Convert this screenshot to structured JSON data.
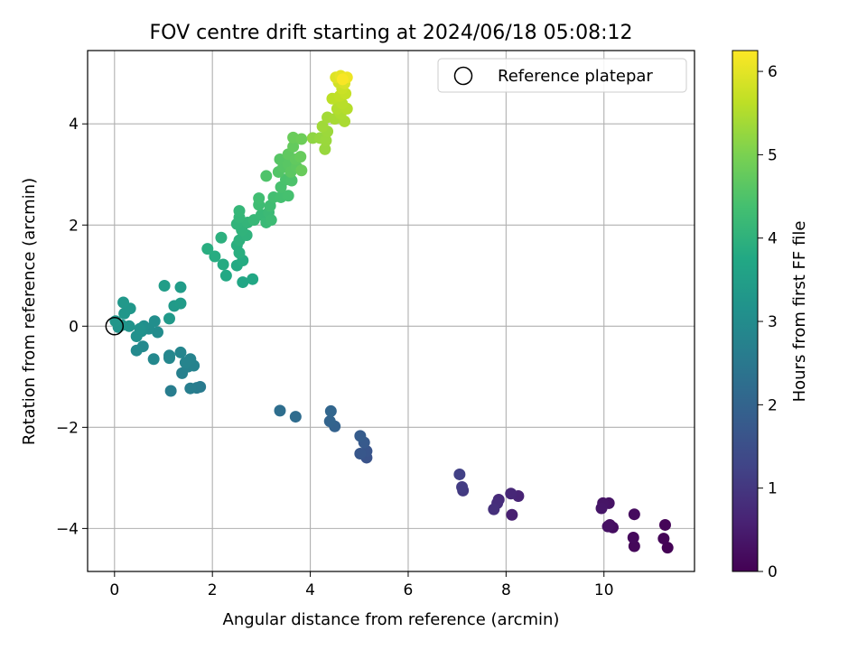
{
  "chart_data": {
    "type": "scatter",
    "title": "FOV centre drift starting at 2024/06/18 05:08:12",
    "xlabel": "Angular distance from reference (arcmin)",
    "ylabel": "Rotation from reference (arcmin)",
    "xlim": [
      -0.55,
      11.85
    ],
    "ylim": [
      -4.85,
      5.45
    ],
    "xticks": [
      0,
      2,
      4,
      6,
      8,
      10
    ],
    "yticks": [
      -4,
      -2,
      0,
      2,
      4
    ],
    "xtick_labels": [
      "0",
      "2",
      "4",
      "6",
      "8",
      "10"
    ],
    "ytick_labels": [
      "−4",
      "−2",
      "0",
      "2",
      "4"
    ],
    "grid": true,
    "legend": {
      "placement": "top-right",
      "label": "Reference platepar"
    },
    "reference_point": {
      "x": 0,
      "y": 0
    },
    "colorbar": {
      "label": "Hours from first FF file",
      "colormap": "viridis",
      "range": [
        0,
        6.25
      ],
      "ticks": [
        0,
        1,
        2,
        3,
        4,
        5,
        6
      ],
      "tick_labels": [
        "0",
        "1",
        "2",
        "3",
        "4",
        "5",
        "6"
      ]
    },
    "points": [
      {
        "x": 11.3,
        "y": -4.38,
        "t": 0.02
      },
      {
        "x": 11.22,
        "y": -4.2,
        "t": 0.05
      },
      {
        "x": 11.25,
        "y": -3.93,
        "t": 0.08
      },
      {
        "x": 10.62,
        "y": -4.35,
        "t": 0.12
      },
      {
        "x": 10.6,
        "y": -4.18,
        "t": 0.15
      },
      {
        "x": 10.62,
        "y": -3.72,
        "t": 0.18
      },
      {
        "x": 10.18,
        "y": -3.98,
        "t": 0.22
      },
      {
        "x": 10.12,
        "y": -3.93,
        "t": 0.25
      },
      {
        "x": 10.08,
        "y": -3.96,
        "t": 0.28
      },
      {
        "x": 10.1,
        "y": -3.5,
        "t": 0.32
      },
      {
        "x": 9.98,
        "y": -3.5,
        "t": 0.35
      },
      {
        "x": 9.95,
        "y": -3.6,
        "t": 0.38
      },
      {
        "x": 8.12,
        "y": -3.73,
        "t": 0.55
      },
      {
        "x": 8.25,
        "y": -3.36,
        "t": 0.62
      },
      {
        "x": 8.1,
        "y": -3.31,
        "t": 0.68
      },
      {
        "x": 7.85,
        "y": -3.43,
        "t": 0.75
      },
      {
        "x": 7.82,
        "y": -3.5,
        "t": 0.8
      },
      {
        "x": 7.75,
        "y": -3.62,
        "t": 0.85
      },
      {
        "x": 7.12,
        "y": -3.25,
        "t": 1.05
      },
      {
        "x": 7.1,
        "y": -3.18,
        "t": 1.1
      },
      {
        "x": 7.05,
        "y": -2.93,
        "t": 1.2
      },
      {
        "x": 5.15,
        "y": -2.6,
        "t": 1.6
      },
      {
        "x": 5.15,
        "y": -2.47,
        "t": 1.65
      },
      {
        "x": 5.02,
        "y": -2.52,
        "t": 1.7
      },
      {
        "x": 5.1,
        "y": -2.3,
        "t": 1.75
      },
      {
        "x": 5.02,
        "y": -2.17,
        "t": 1.8
      },
      {
        "x": 4.5,
        "y": -1.98,
        "t": 1.95
      },
      {
        "x": 4.4,
        "y": -1.88,
        "t": 2.0
      },
      {
        "x": 4.42,
        "y": -1.68,
        "t": 2.05
      },
      {
        "x": 3.7,
        "y": -1.79,
        "t": 2.2
      },
      {
        "x": 3.38,
        "y": -1.67,
        "t": 2.25
      },
      {
        "x": 1.75,
        "y": -1.2,
        "t": 2.55
      },
      {
        "x": 1.68,
        "y": -1.22,
        "t": 2.6
      },
      {
        "x": 1.15,
        "y": -1.28,
        "t": 2.62
      },
      {
        "x": 1.55,
        "y": -1.23,
        "t": 2.65
      },
      {
        "x": 1.38,
        "y": -0.93,
        "t": 2.7
      },
      {
        "x": 1.5,
        "y": -0.8,
        "t": 2.72
      },
      {
        "x": 1.62,
        "y": -0.78,
        "t": 2.75
      },
      {
        "x": 1.55,
        "y": -0.65,
        "t": 2.78
      },
      {
        "x": 1.45,
        "y": -0.72,
        "t": 2.8
      },
      {
        "x": 1.35,
        "y": -0.52,
        "t": 2.82
      },
      {
        "x": 1.12,
        "y": -0.58,
        "t": 2.85
      },
      {
        "x": 1.12,
        "y": -0.63,
        "t": 2.88
      },
      {
        "x": 0.8,
        "y": -0.65,
        "t": 2.9
      },
      {
        "x": 0.58,
        "y": -0.4,
        "t": 2.93
      },
      {
        "x": 0.45,
        "y": -0.48,
        "t": 2.95
      },
      {
        "x": 0.88,
        "y": -0.12,
        "t": 3.0
      },
      {
        "x": 0.7,
        "y": -0.05,
        "t": 3.02
      },
      {
        "x": 0.82,
        "y": 0.1,
        "t": 3.05
      },
      {
        "x": 0.6,
        "y": 0.0,
        "t": 3.08
      },
      {
        "x": 0.55,
        "y": -0.1,
        "t": 3.1
      },
      {
        "x": 0.45,
        "y": -0.2,
        "t": 3.12
      },
      {
        "x": 0.52,
        "y": -0.05,
        "t": 3.15
      },
      {
        "x": 0.3,
        "y": 0.0,
        "t": 3.18
      },
      {
        "x": 0.15,
        "y": 0.02,
        "t": 3.2
      },
      {
        "x": 0.08,
        "y": -0.02,
        "t": 3.22
      },
      {
        "x": 0.02,
        "y": 0.1,
        "t": 3.25
      },
      {
        "x": 0.2,
        "y": 0.25,
        "t": 3.28
      },
      {
        "x": 0.32,
        "y": 0.35,
        "t": 3.3
      },
      {
        "x": 0.18,
        "y": 0.47,
        "t": 3.32
      },
      {
        "x": 1.12,
        "y": 0.15,
        "t": 3.35
      },
      {
        "x": 1.22,
        "y": 0.4,
        "t": 3.38
      },
      {
        "x": 1.35,
        "y": 0.45,
        "t": 3.4
      },
      {
        "x": 1.35,
        "y": 0.77,
        "t": 3.42
      },
      {
        "x": 1.02,
        "y": 0.8,
        "t": 3.45
      },
      {
        "x": 2.62,
        "y": 0.87,
        "t": 3.7
      },
      {
        "x": 2.82,
        "y": 0.93,
        "t": 3.72
      },
      {
        "x": 2.28,
        "y": 1.0,
        "t": 3.75
      },
      {
        "x": 2.5,
        "y": 1.2,
        "t": 3.78
      },
      {
        "x": 2.22,
        "y": 1.22,
        "t": 3.8
      },
      {
        "x": 2.62,
        "y": 1.3,
        "t": 3.82
      },
      {
        "x": 2.05,
        "y": 1.38,
        "t": 3.85
      },
      {
        "x": 1.9,
        "y": 1.53,
        "t": 3.88
      },
      {
        "x": 2.55,
        "y": 1.45,
        "t": 3.9
      },
      {
        "x": 2.5,
        "y": 1.6,
        "t": 3.92
      },
      {
        "x": 2.18,
        "y": 1.75,
        "t": 3.95
      },
      {
        "x": 2.55,
        "y": 1.7,
        "t": 3.98
      },
      {
        "x": 2.7,
        "y": 1.8,
        "t": 4.0
      },
      {
        "x": 2.6,
        "y": 1.9,
        "t": 4.02
      },
      {
        "x": 2.5,
        "y": 2.02,
        "t": 4.05
      },
      {
        "x": 2.72,
        "y": 2.05,
        "t": 4.08
      },
      {
        "x": 2.55,
        "y": 2.15,
        "t": 4.1
      },
      {
        "x": 2.55,
        "y": 2.28,
        "t": 4.12
      },
      {
        "x": 2.85,
        "y": 2.1,
        "t": 4.15
      },
      {
        "x": 3.0,
        "y": 2.2,
        "t": 4.18
      },
      {
        "x": 3.1,
        "y": 2.05,
        "t": 4.2
      },
      {
        "x": 3.15,
        "y": 2.25,
        "t": 4.22
      },
      {
        "x": 3.2,
        "y": 2.1,
        "t": 4.25
      },
      {
        "x": 2.95,
        "y": 2.4,
        "t": 4.28
      },
      {
        "x": 3.18,
        "y": 2.38,
        "t": 4.3
      },
      {
        "x": 2.95,
        "y": 2.53,
        "t": 4.32
      },
      {
        "x": 3.25,
        "y": 2.55,
        "t": 4.35
      },
      {
        "x": 3.4,
        "y": 2.55,
        "t": 4.38
      },
      {
        "x": 3.55,
        "y": 2.58,
        "t": 4.4
      },
      {
        "x": 3.4,
        "y": 2.75,
        "t": 4.42
      },
      {
        "x": 3.5,
        "y": 2.9,
        "t": 4.45
      },
      {
        "x": 3.62,
        "y": 2.88,
        "t": 4.48
      },
      {
        "x": 3.1,
        "y": 2.97,
        "t": 4.5
      },
      {
        "x": 3.35,
        "y": 3.05,
        "t": 4.55
      },
      {
        "x": 3.45,
        "y": 3.15,
        "t": 4.58
      },
      {
        "x": 3.38,
        "y": 3.3,
        "t": 4.6
      },
      {
        "x": 3.55,
        "y": 3.2,
        "t": 4.62
      },
      {
        "x": 3.6,
        "y": 3.05,
        "t": 4.65
      },
      {
        "x": 3.72,
        "y": 3.15,
        "t": 4.68
      },
      {
        "x": 3.55,
        "y": 3.4,
        "t": 4.7
      },
      {
        "x": 3.7,
        "y": 3.3,
        "t": 4.72
      },
      {
        "x": 3.65,
        "y": 3.55,
        "t": 4.75
      },
      {
        "x": 3.8,
        "y": 3.35,
        "t": 4.78
      },
      {
        "x": 3.82,
        "y": 3.08,
        "t": 4.8
      },
      {
        "x": 3.65,
        "y": 3.73,
        "t": 4.82
      },
      {
        "x": 3.82,
        "y": 3.7,
        "t": 4.85
      },
      {
        "x": 4.05,
        "y": 3.72,
        "t": 5.2
      },
      {
        "x": 4.2,
        "y": 3.72,
        "t": 5.25
      },
      {
        "x": 4.3,
        "y": 3.5,
        "t": 5.28
      },
      {
        "x": 4.32,
        "y": 3.67,
        "t": 5.3
      },
      {
        "x": 4.35,
        "y": 3.85,
        "t": 5.32
      },
      {
        "x": 4.25,
        "y": 3.95,
        "t": 5.35
      },
      {
        "x": 4.35,
        "y": 4.13,
        "t": 5.38
      },
      {
        "x": 4.5,
        "y": 4.1,
        "t": 5.42
      },
      {
        "x": 4.7,
        "y": 4.05,
        "t": 5.45
      },
      {
        "x": 4.62,
        "y": 4.2,
        "t": 5.48
      },
      {
        "x": 4.55,
        "y": 4.3,
        "t": 5.52
      },
      {
        "x": 4.75,
        "y": 4.3,
        "t": 5.55
      },
      {
        "x": 4.65,
        "y": 4.4,
        "t": 5.58
      },
      {
        "x": 4.45,
        "y": 4.5,
        "t": 5.62
      },
      {
        "x": 4.6,
        "y": 4.55,
        "t": 5.65
      },
      {
        "x": 4.72,
        "y": 4.6,
        "t": 5.7
      },
      {
        "x": 4.65,
        "y": 4.7,
        "t": 5.75
      },
      {
        "x": 4.58,
        "y": 4.82,
        "t": 5.82
      },
      {
        "x": 4.7,
        "y": 4.8,
        "t": 5.88
      },
      {
        "x": 4.52,
        "y": 4.92,
        "t": 5.95
      },
      {
        "x": 4.62,
        "y": 4.95,
        "t": 6.02
      },
      {
        "x": 4.75,
        "y": 4.92,
        "t": 6.1
      },
      {
        "x": 4.66,
        "y": 4.88,
        "t": 6.2
      }
    ]
  }
}
